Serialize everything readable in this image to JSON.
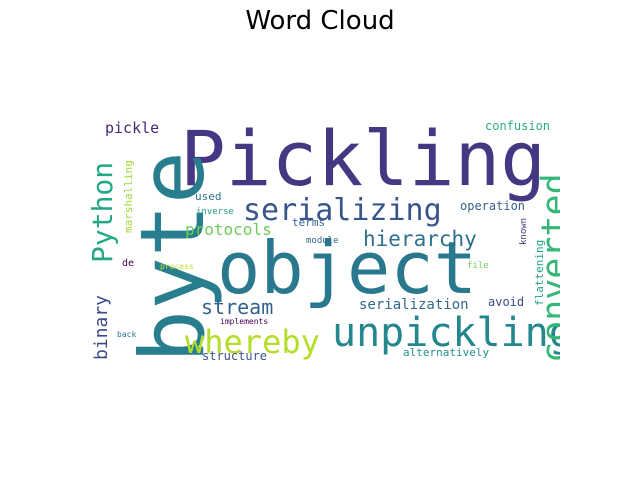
{
  "chart_data": {
    "type": "wordcloud",
    "title": "Word Cloud",
    "background": "#ffffff",
    "words": [
      {
        "text": "Pickling",
        "weight": 1.0,
        "color": "#453781"
      },
      {
        "text": "object",
        "weight": 0.95,
        "color": "#2a788e"
      },
      {
        "text": "byte",
        "weight": 0.93,
        "color": "#287d8e"
      },
      {
        "text": "unpickling",
        "weight": 0.55,
        "color": "#24878e"
      },
      {
        "text": "serializing",
        "weight": 0.48,
        "color": "#39568c"
      },
      {
        "text": "whereby",
        "weight": 0.45,
        "color": "#b5de2b"
      },
      {
        "text": "converted",
        "weight": 0.45,
        "color": "#35b779"
      },
      {
        "text": "Python",
        "weight": 0.4,
        "color": "#22a884"
      },
      {
        "text": "hierarchy",
        "weight": 0.3,
        "color": "#2d708e"
      },
      {
        "text": "stream",
        "weight": 0.28,
        "color": "#33638d"
      },
      {
        "text": "binary",
        "weight": 0.27,
        "color": "#3e4989"
      },
      {
        "text": "protocols",
        "weight": 0.22,
        "color": "#6ccd5a"
      },
      {
        "text": "serialization",
        "weight": 0.2,
        "color": "#31688e"
      },
      {
        "text": "pickle",
        "weight": 0.18,
        "color": "#482878"
      },
      {
        "text": "flattening",
        "weight": 0.16,
        "color": "#20a386"
      },
      {
        "text": "confusion",
        "weight": 0.14,
        "color": "#29af7f"
      },
      {
        "text": "marshalling",
        "weight": 0.14,
        "color": "#a0da39"
      },
      {
        "text": "structure",
        "weight": 0.13,
        "color": "#3b528b"
      },
      {
        "text": "alternatively",
        "weight": 0.13,
        "color": "#21918c"
      },
      {
        "text": "avoid",
        "weight": 0.13,
        "color": "#3e4a89"
      },
      {
        "text": "operation",
        "weight": 0.13,
        "color": "#355f8d"
      },
      {
        "text": "used",
        "weight": 0.12,
        "color": "#2c728e"
      },
      {
        "text": "terms",
        "weight": 0.12,
        "color": "#34618d"
      },
      {
        "text": "inverse",
        "weight": 0.1,
        "color": "#1f9e89"
      },
      {
        "text": "module",
        "weight": 0.1,
        "color": "#306a8e"
      },
      {
        "text": "known",
        "weight": 0.1,
        "color": "#46337e"
      },
      {
        "text": "de",
        "weight": 0.1,
        "color": "#440154"
      },
      {
        "text": "file",
        "weight": 0.1,
        "color": "#73d056"
      },
      {
        "text": "process",
        "weight": 0.09,
        "color": "#c2df23"
      },
      {
        "text": "implements",
        "weight": 0.09,
        "color": "#440154"
      },
      {
        "text": "back",
        "weight": 0.09,
        "color": "#2b758e"
      }
    ]
  }
}
